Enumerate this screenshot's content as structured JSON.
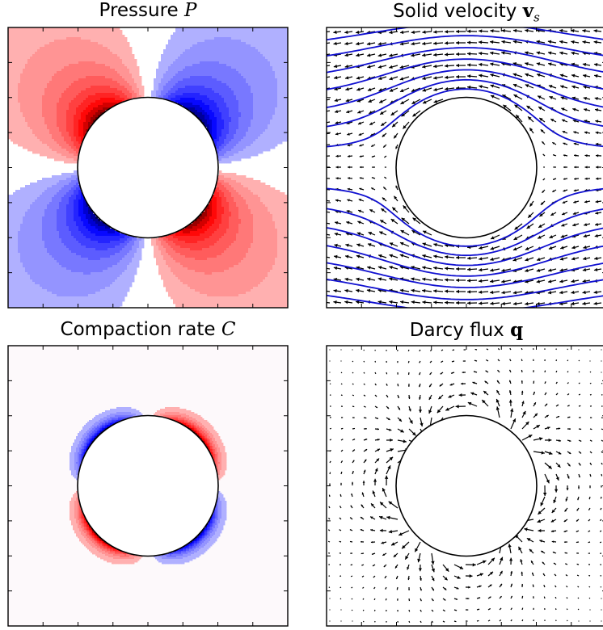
{
  "panels": {
    "pressure": {
      "title_text": "Pressure ",
      "title_symbol": "P"
    },
    "solid_velocity": {
      "title_text": "Solid velocity ",
      "title_symbol": "v",
      "title_subscript": "s"
    },
    "compaction": {
      "title_text": "Compaction rate ",
      "title_symbol": "C"
    },
    "darcy": {
      "title_text": "Darcy flux ",
      "title_symbol": "q"
    }
  },
  "colors": {
    "positive": "#ff0000",
    "negative": "#0000ff",
    "streamline": "#1010d0",
    "arrow": "#000000",
    "background": "#ffffff"
  }
}
